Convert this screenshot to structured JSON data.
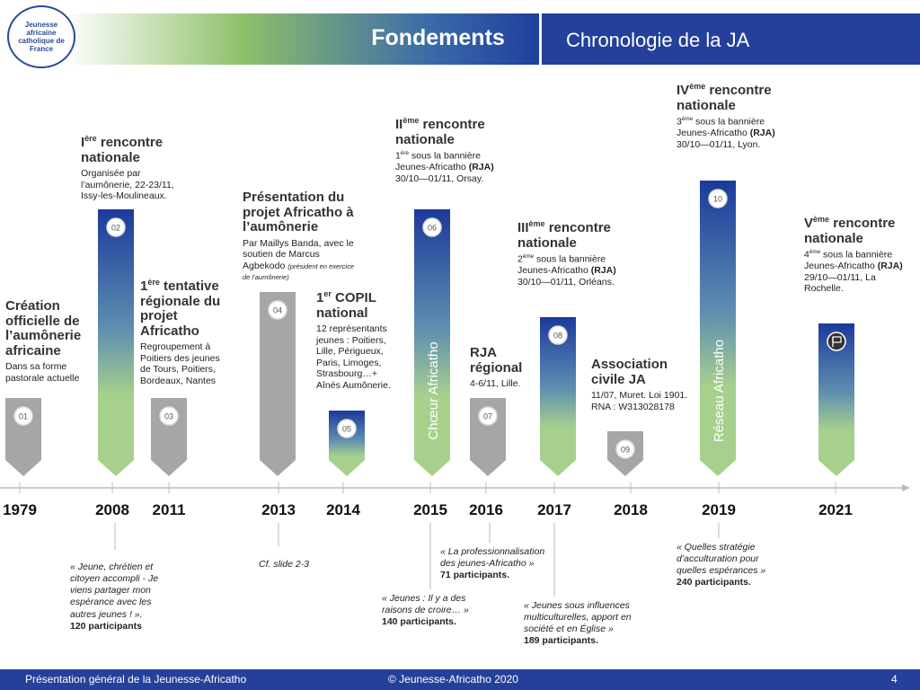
{
  "header": {
    "logo": "Jeunesse africaine catholique de France",
    "title": "Fondements",
    "subtitle": "Chronologie de la JA"
  },
  "events": [
    {
      "title": [
        {
          "bold": "Création officielle de l’aumônerie africaine"
        }
      ],
      "desc": [
        {
          "text": "Dans sa forme pastorale actuelle"
        }
      ],
      "number": "01",
      "color": "gray"
    },
    {
      "title": [
        {
          "bold": "I"
        },
        {
          "sup": "ère"
        },
        {
          "bold": " rencontre nationale"
        }
      ],
      "desc": [
        {
          "text": "Organisée par l’aumônerie, 22-23/11, Issy-les-Moulineaux."
        }
      ],
      "number": "02",
      "color": "gradient"
    },
    {
      "title": [
        {
          "bold": "1"
        },
        {
          "sup": "ère"
        },
        {
          "bold": " tentative régionale du projet Africatho"
        }
      ],
      "desc": [
        {
          "text": "Regroupement à Poitiers des jeunes de Tours, Poitiers, Bordeaux, Nantes"
        }
      ],
      "number": "03",
      "color": "gray"
    },
    {
      "title": [
        {
          "bold": "Présentation du projet Africatho à l’aumônerie"
        }
      ],
      "desc": [
        {
          "text": "Par Maillys Banda, avec le soutien de Marcus Agbekodo "
        },
        {
          "note": "(président en exercice de l’aumônerie)"
        }
      ],
      "number": "04",
      "color": "gray"
    },
    {
      "title": [
        {
          "bold": "1"
        },
        {
          "sup": "er"
        },
        {
          "bold": " COPIL national"
        }
      ],
      "desc": [
        {
          "text": "12 représentants jeunes : Poitiers, Lille, Périgueux, Paris, Limoges, Strasbourg…+ Aînés Aumônerie."
        }
      ],
      "number": "05",
      "color": "gradient"
    },
    {
      "title": [
        {
          "bold": "II"
        },
        {
          "sup": "ème"
        },
        {
          "bold": " rencontre nationale"
        }
      ],
      "desc": [
        {
          "text": "1"
        },
        {
          "sup": "ère"
        },
        {
          "text": " sous la bannière Jeunes-Africatho "
        },
        {
          "bold": "(RJA)"
        },
        {
          "text": " 30/10—01/11, Orsay."
        }
      ],
      "number": "06",
      "label": "Chœur Africatho",
      "color": "gradient"
    },
    {
      "title": [
        {
          "bold": "RJA régional"
        }
      ],
      "desc": [
        {
          "text": "4-6/11, Lille."
        }
      ],
      "number": "07",
      "color": "gray"
    },
    {
      "title": [
        {
          "bold": "III"
        },
        {
          "sup": "ème"
        },
        {
          "bold": " rencontre nationale"
        }
      ],
      "desc": [
        {
          "text": "2"
        },
        {
          "sup": "ème"
        },
        {
          "text": " sous la bannière Jeunes-Africatho "
        },
        {
          "bold": "(RJA)"
        },
        {
          "text": " 30/10—01/11, Orléans."
        }
      ],
      "number": "08",
      "color": "gradient"
    },
    {
      "title": [
        {
          "bold": "Association civile JA"
        }
      ],
      "desc": [
        {
          "text": "11/07, Muret. Loi 1901. RNA : W313028178"
        }
      ],
      "number": "09",
      "color": "gray"
    },
    {
      "title": [
        {
          "bold": "IV"
        },
        {
          "sup": "ème"
        },
        {
          "bold": " rencontre nationale"
        }
      ],
      "desc": [
        {
          "text": "3"
        },
        {
          "sup": "ème"
        },
        {
          "text": " sous la bannière Jeunes-Africatho "
        },
        {
          "bold": "(RJA)"
        },
        {
          "text": " 30/10—01/11, Lyon."
        }
      ],
      "number": "10",
      "label": "Réseau Africatho",
      "color": "gradient"
    },
    {
      "title": [
        {
          "bold": "V"
        },
        {
          "sup": "ème"
        },
        {
          "bold": " rencontre nationale"
        }
      ],
      "desc": [
        {
          "text": "4"
        },
        {
          "sup": "ème"
        },
        {
          "text": " sous la bannière Jeunes-Africatho "
        },
        {
          "bold": "(RJA)"
        },
        {
          "text": " 29/10—01/11, La Rochelle."
        }
      ],
      "color": "gradient"
    }
  ],
  "years": [
    "1979",
    "2008",
    "2011",
    "2013",
    "2014",
    "2015",
    "2016",
    "2017",
    "2018",
    "2019",
    "2021"
  ],
  "quotes": [
    {
      "text": "« Jeune, chrétien et citoyen accompli - Je viens partager mon espérance avec les autres jeunes ! ».",
      "participants": "120 participants"
    },
    {
      "text": "Cf. slide 2-3"
    },
    {
      "text": "« Jeunes : Il y a des raisons de croire… »",
      "participants": "140 participants."
    },
    {
      "text": "« La professionnalisation des jeunes-Africatho »",
      "participants": "71 participants."
    },
    {
      "text": "« Jeunes sous influences multiculturelles, apport en société et en Église »",
      "participants": "189 participants."
    },
    {
      "text": "« Quelles stratégie d’acculturation pour quelles espérances »",
      "participants": "240 participants."
    }
  ],
  "footer": {
    "left": "Présentation général de la Jeunesse-Africatho",
    "center": "© Jeunesse-Africatho 2020",
    "page": "4"
  }
}
